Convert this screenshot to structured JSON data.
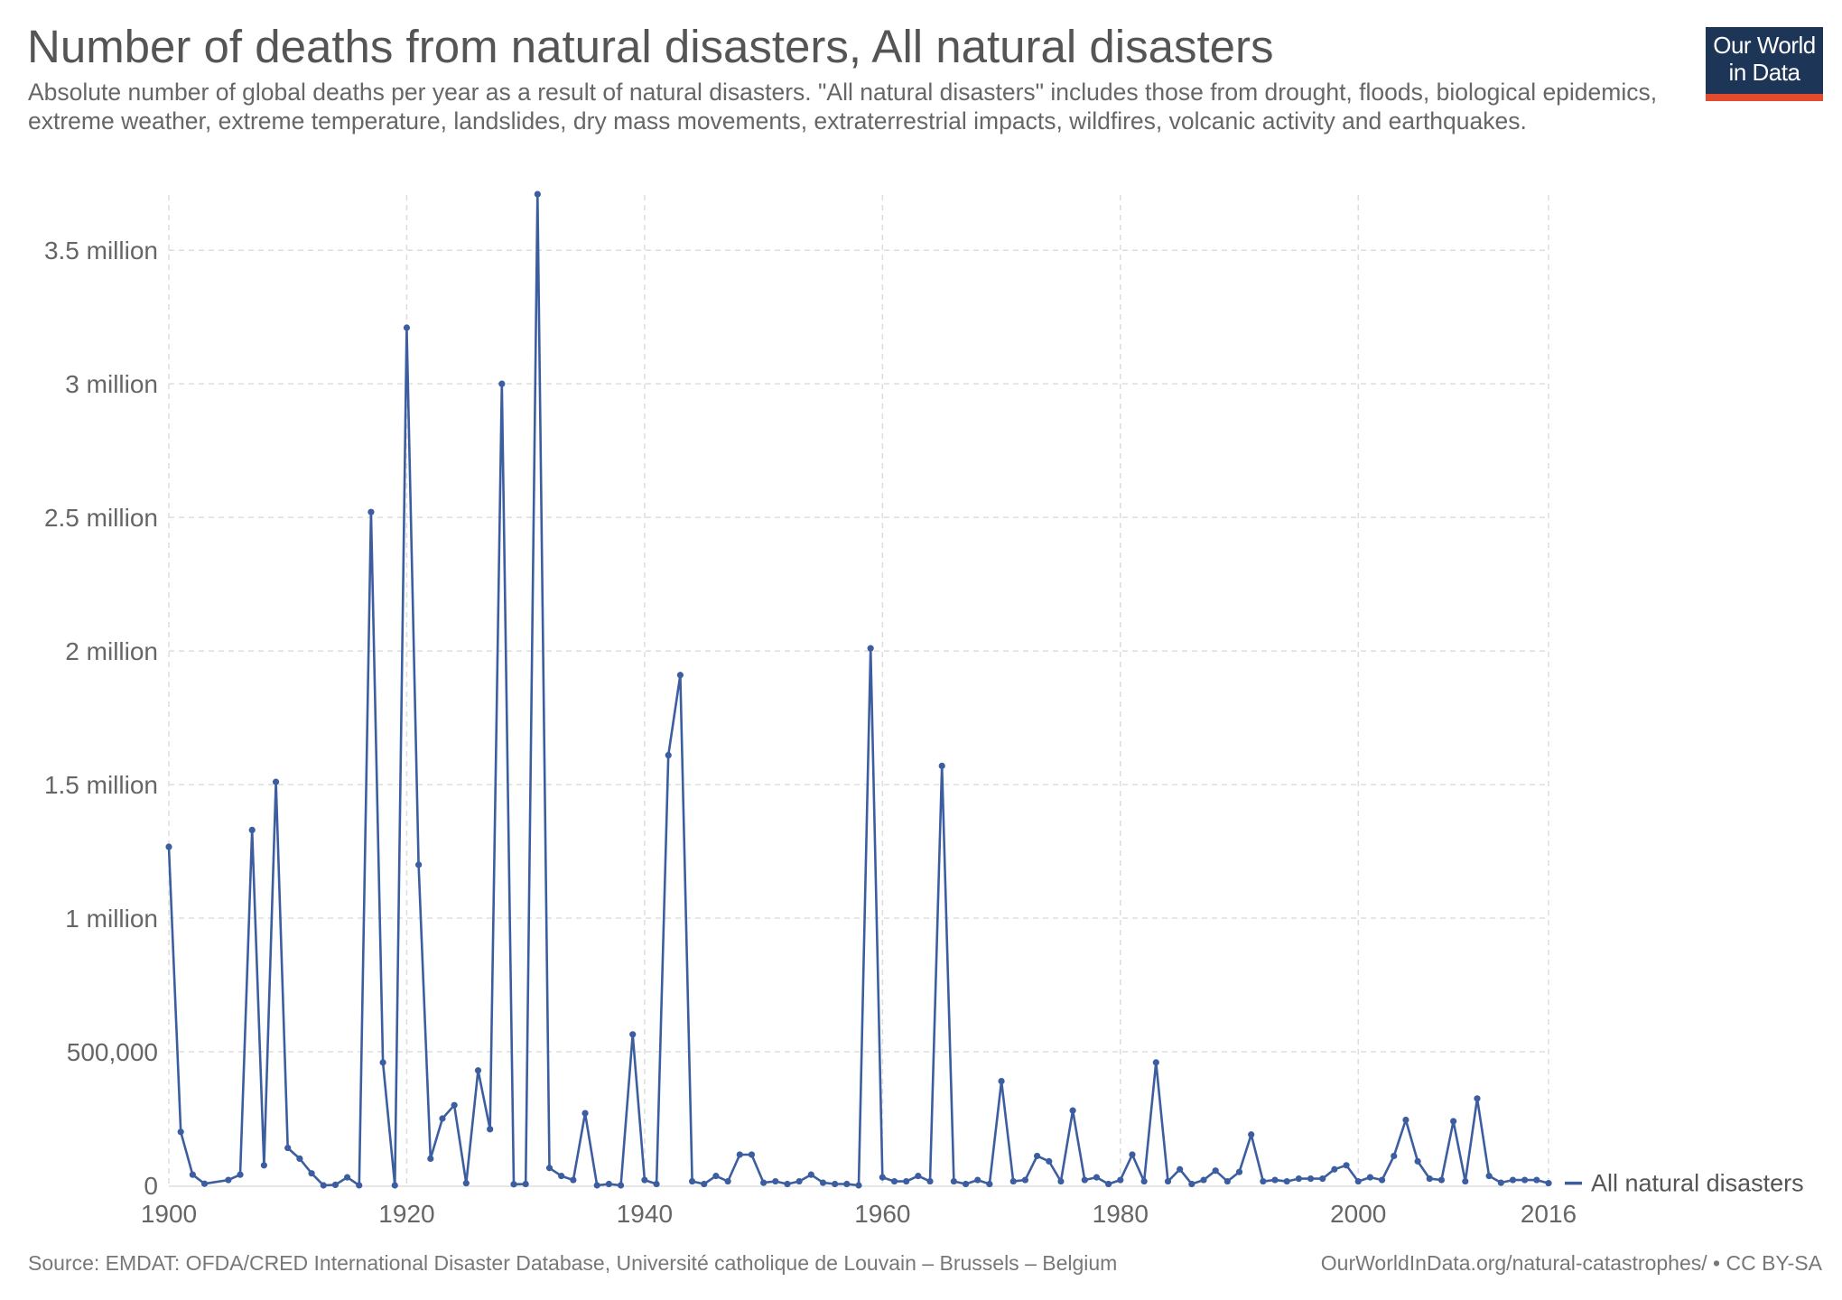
{
  "header": {
    "title": "Number of deaths from natural disasters, All natural disasters",
    "subtitle": "Absolute number of global deaths per year as a result of natural disasters. \"All natural disasters\" includes those from drought, floods, biological epidemics, extreme weather, extreme temperature, landslides, dry mass movements, extraterrestrial impacts, wildfires, volcanic activity and earthquakes.",
    "logo_line1": "Our World",
    "logo_line2": "in Data"
  },
  "footer": {
    "source": "Source: EMDAT: OFDA/CRED International Disaster Database, Université catholique de Louvain – Brussels – Belgium",
    "license": "OurWorldInData.org/natural-catastrophes/ • CC BY-SA"
  },
  "colors": {
    "series": "#3c5ea0",
    "grid": "#dddddd",
    "logo_bg": "#1d3557",
    "logo_bar": "#e44a2c"
  },
  "chart_data": {
    "type": "line",
    "title": "Number of deaths from natural disasters, All natural disasters",
    "xlabel": "",
    "ylabel": "",
    "xlim": [
      1900,
      2016
    ],
    "ylim": [
      0,
      3700000
    ],
    "grid": true,
    "legend": "right",
    "x_ticks": [
      {
        "value": 1900,
        "label": "1900"
      },
      {
        "value": 1920,
        "label": "1920"
      },
      {
        "value": 1940,
        "label": "1940"
      },
      {
        "value": 1960,
        "label": "1960"
      },
      {
        "value": 1980,
        "label": "1980"
      },
      {
        "value": 2000,
        "label": "2000"
      },
      {
        "value": 2016,
        "label": "2016"
      }
    ],
    "y_ticks": [
      {
        "value": 0,
        "label": "0"
      },
      {
        "value": 500000,
        "label": "500,000"
      },
      {
        "value": 1000000,
        "label": "1 million"
      },
      {
        "value": 1500000,
        "label": "1.5 million"
      },
      {
        "value": 2000000,
        "label": "2 million"
      },
      {
        "value": 2500000,
        "label": "2.5 million"
      },
      {
        "value": 3000000,
        "label": "3 million"
      },
      {
        "value": 3500000,
        "label": "3.5 million"
      }
    ],
    "series": [
      {
        "name": "All natural disasters",
        "points": [
          [
            1900,
            1267000
          ],
          [
            1901,
            200000
          ],
          [
            1902,
            40000
          ],
          [
            1903,
            6000
          ],
          [
            1905,
            20000
          ],
          [
            1906,
            40000
          ],
          [
            1907,
            1330000
          ],
          [
            1908,
            75000
          ],
          [
            1909,
            1510000
          ],
          [
            1910,
            140000
          ],
          [
            1911,
            100000
          ],
          [
            1912,
            45000
          ],
          [
            1913,
            0
          ],
          [
            1914,
            2000
          ],
          [
            1915,
            30000
          ],
          [
            1916,
            0
          ],
          [
            1917,
            2520000
          ],
          [
            1918,
            460000
          ],
          [
            1919,
            0
          ],
          [
            1920,
            3210000
          ],
          [
            1921,
            1200000
          ],
          [
            1922,
            100000
          ],
          [
            1923,
            250000
          ],
          [
            1924,
            300000
          ],
          [
            1925,
            8000
          ],
          [
            1926,
            430000
          ],
          [
            1927,
            210000
          ],
          [
            1928,
            3000000
          ],
          [
            1929,
            4000
          ],
          [
            1930,
            5000
          ],
          [
            1931,
            3710000
          ],
          [
            1932,
            65000
          ],
          [
            1933,
            35000
          ],
          [
            1934,
            20000
          ],
          [
            1935,
            270000
          ],
          [
            1936,
            0
          ],
          [
            1937,
            5000
          ],
          [
            1938,
            0
          ],
          [
            1939,
            565000
          ],
          [
            1940,
            20000
          ],
          [
            1941,
            5000
          ],
          [
            1942,
            1610000
          ],
          [
            1943,
            1910000
          ],
          [
            1944,
            15000
          ],
          [
            1945,
            5000
          ],
          [
            1946,
            35000
          ],
          [
            1947,
            15000
          ],
          [
            1948,
            115000
          ],
          [
            1949,
            115000
          ],
          [
            1950,
            10000
          ],
          [
            1951,
            15000
          ],
          [
            1952,
            5000
          ],
          [
            1953,
            15000
          ],
          [
            1954,
            40000
          ],
          [
            1955,
            10000
          ],
          [
            1956,
            5000
          ],
          [
            1957,
            5000
          ],
          [
            1958,
            0
          ],
          [
            1959,
            2010000
          ],
          [
            1960,
            30000
          ],
          [
            1961,
            15000
          ],
          [
            1962,
            15000
          ],
          [
            1963,
            35000
          ],
          [
            1964,
            15000
          ],
          [
            1965,
            1570000
          ],
          [
            1966,
            15000
          ],
          [
            1967,
            5000
          ],
          [
            1968,
            20000
          ],
          [
            1969,
            5000
          ],
          [
            1970,
            390000
          ],
          [
            1971,
            15000
          ],
          [
            1972,
            20000
          ],
          [
            1973,
            110000
          ],
          [
            1974,
            90000
          ],
          [
            1975,
            15000
          ],
          [
            1976,
            280000
          ],
          [
            1977,
            20000
          ],
          [
            1978,
            30000
          ],
          [
            1979,
            5000
          ],
          [
            1980,
            20000
          ],
          [
            1981,
            115000
          ],
          [
            1982,
            15000
          ],
          [
            1983,
            460000
          ],
          [
            1984,
            15000
          ],
          [
            1985,
            60000
          ],
          [
            1986,
            5000
          ],
          [
            1987,
            20000
          ],
          [
            1988,
            55000
          ],
          [
            1989,
            15000
          ],
          [
            1990,
            50000
          ],
          [
            1991,
            190000
          ],
          [
            1992,
            15000
          ],
          [
            1993,
            20000
          ],
          [
            1994,
            15000
          ],
          [
            1995,
            25000
          ],
          [
            1996,
            25000
          ],
          [
            1997,
            25000
          ],
          [
            1998,
            60000
          ],
          [
            1999,
            75000
          ],
          [
            2000,
            15000
          ],
          [
            2001,
            30000
          ],
          [
            2002,
            20000
          ],
          [
            2003,
            110000
          ],
          [
            2004,
            245000
          ],
          [
            2005,
            90000
          ],
          [
            2006,
            25000
          ],
          [
            2007,
            20000
          ],
          [
            2008,
            240000
          ],
          [
            2009,
            15000
          ],
          [
            2010,
            325000
          ],
          [
            2011,
            35000
          ],
          [
            2012,
            10000
          ],
          [
            2013,
            20000
          ],
          [
            2014,
            20000
          ],
          [
            2015,
            20000
          ],
          [
            2016,
            8000
          ]
        ]
      }
    ]
  }
}
